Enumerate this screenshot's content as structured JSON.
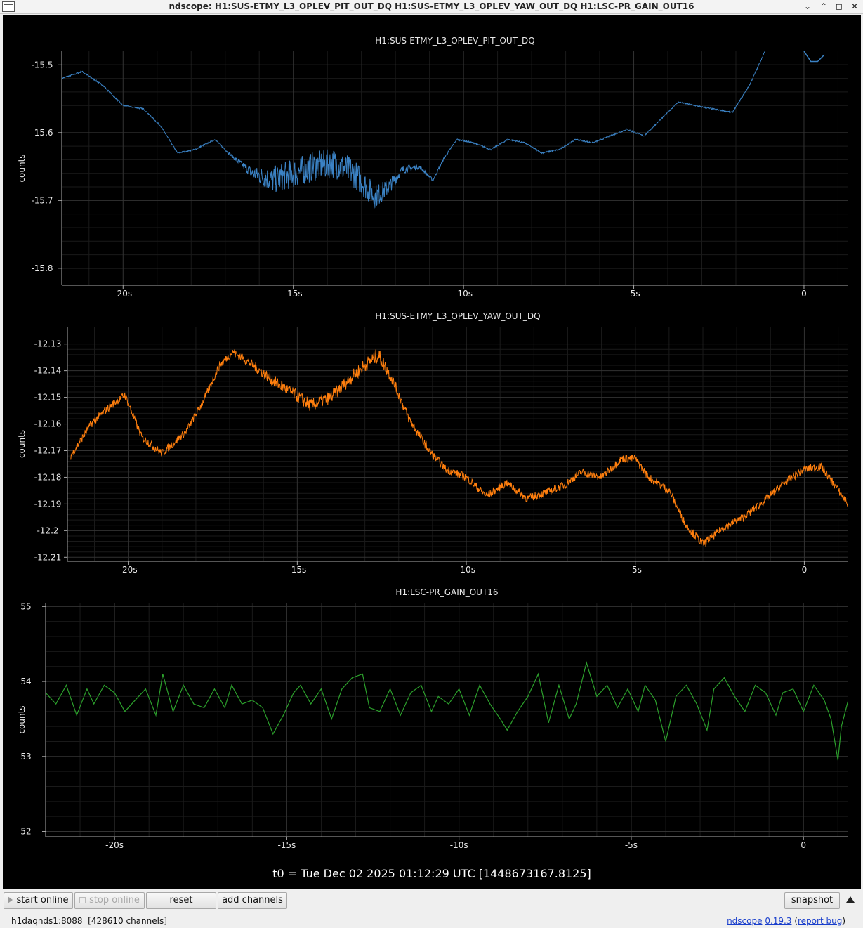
{
  "window": {
    "title": "ndscope: H1:SUS-ETMY_L3_OPLEV_PIT_OUT_DQ H1:SUS-ETMY_L3_OPLEV_YAW_OUT_DQ H1:LSC-PR_GAIN_OUT16",
    "controls": {
      "shade": "⌄",
      "maximize_up": "⌃",
      "restore": "◻",
      "close": "✕"
    }
  },
  "chart_data": [
    {
      "type": "line",
      "title": "H1:SUS-ETMY_L3_OPLEV_PIT_OUT_DQ",
      "ylabel": "counts",
      "color": "#3b82c4",
      "xlim": [
        -21.8,
        1.3
      ],
      "ylim": [
        -15.825,
        -15.48
      ],
      "yticks": [
        -15.5,
        -15.6,
        -15.7,
        -15.8
      ],
      "ytick_labels": [
        "-15.5",
        "-15.6",
        "-15.7",
        "-15.8"
      ],
      "xticks": [
        -20,
        -15,
        -10,
        -5,
        0
      ],
      "xtick_labels": [
        "-20s",
        "-15s",
        "-10s",
        "-5s",
        "0"
      ],
      "grid": true,
      "x": [
        -21.8,
        -21.2,
        -20.6,
        -20.0,
        -19.4,
        -18.9,
        -18.4,
        -17.9,
        -17.3,
        -16.8,
        -16.2,
        -15.6,
        -15.0,
        -14.4,
        -13.8,
        -13.2,
        -12.6,
        -12.2,
        -11.8,
        -11.3,
        -10.9,
        -10.6,
        -10.2,
        -9.7,
        -9.2,
        -8.7,
        -8.2,
        -7.7,
        -7.2,
        -6.7,
        -6.2,
        -5.7,
        -5.2,
        -4.7,
        -4.2,
        -3.7,
        -3.2,
        -2.7,
        -2.1,
        -1.6,
        -1.1
      ],
      "y": [
        -15.52,
        -15.51,
        -15.53,
        -15.56,
        -15.565,
        -15.59,
        -15.63,
        -15.625,
        -15.61,
        -15.635,
        -15.66,
        -15.67,
        -15.66,
        -15.65,
        -15.645,
        -15.66,
        -15.695,
        -15.68,
        -15.655,
        -15.65,
        -15.67,
        -15.64,
        -15.61,
        -15.615,
        -15.625,
        -15.61,
        -15.615,
        -15.63,
        -15.625,
        -15.61,
        -15.615,
        -15.605,
        -15.595,
        -15.605,
        -15.58,
        -15.555,
        -15.56,
        -15.565,
        -15.57,
        -15.53,
        -15.475
      ],
      "noise": [
        0.001,
        0.001,
        0.001,
        0.001,
        0.001,
        0.001,
        0.001,
        0.001,
        0.001,
        0.002,
        0.009,
        0.02,
        0.022,
        0.022,
        0.022,
        0.022,
        0.018,
        0.012,
        0.006,
        0.003,
        0.002,
        0.002,
        0.001,
        0.001,
        0.001,
        0.001,
        0.001,
        0.001,
        0.001,
        0.001,
        0.001,
        0.001,
        0.001,
        0.001,
        0.001,
        0.001,
        0.001,
        0.001,
        0.001,
        0.001,
        0.001
      ],
      "extra_segment": {
        "x": [
          0.0,
          0.2,
          0.4,
          0.6
        ],
        "y": [
          -15.48,
          -15.495,
          -15.495,
          -15.485
        ]
      }
    },
    {
      "type": "line",
      "title": "H1:SUS-ETMY_L3_OPLEV_YAW_OUT_DQ",
      "ylabel": "counts",
      "color": "#ff7f0e",
      "xlim": [
        -21.8,
        1.3
      ],
      "ylim": [
        -12.2115,
        -12.1235
      ],
      "yticks": [
        -12.13,
        -12.14,
        -12.15,
        -12.16,
        -12.17,
        -12.18,
        -12.19,
        -12.2,
        -12.21
      ],
      "ytick_labels": [
        "-12.13",
        "-12.14",
        "-12.15",
        "-12.16",
        "-12.17",
        "-12.18",
        "-12.19",
        "-12.2",
        "-12.21"
      ],
      "xticks": [
        -20,
        -15,
        -10,
        -5,
        0
      ],
      "xtick_labels": [
        "-20s",
        "-15s",
        "-10s",
        "-5s",
        "0"
      ],
      "grid": true,
      "x": [
        -21.7,
        -21.1,
        -20.5,
        -20.1,
        -19.6,
        -19.0,
        -18.3,
        -17.8,
        -17.3,
        -16.9,
        -16.3,
        -15.8,
        -15.2,
        -14.6,
        -14.0,
        -13.6,
        -13.1,
        -12.6,
        -12.2,
        -11.7,
        -11.1,
        -10.6,
        -10.0,
        -9.4,
        -8.8,
        -8.2,
        -7.7,
        -7.1,
        -6.6,
        -6.0,
        -5.4,
        -5.0,
        -4.6,
        -4.0,
        -3.5,
        -3.0,
        -2.4,
        -1.8,
        -1.2,
        -0.6,
        0.0,
        0.5,
        0.9,
        1.3
      ],
      "y": [
        -12.172,
        -12.16,
        -12.153,
        -12.149,
        -12.165,
        -12.171,
        -12.163,
        -12.152,
        -12.138,
        -12.133,
        -12.138,
        -12.143,
        -12.148,
        -12.153,
        -12.15,
        -12.145,
        -12.139,
        -12.134,
        -12.143,
        -12.158,
        -12.17,
        -12.177,
        -12.18,
        -12.187,
        -12.182,
        -12.188,
        -12.186,
        -12.183,
        -12.178,
        -12.18,
        -12.173,
        -12.173,
        -12.18,
        -12.185,
        -12.198,
        -12.205,
        -12.199,
        -12.195,
        -12.189,
        -12.182,
        -12.177,
        -12.176,
        -12.183,
        -12.19
      ],
      "noise": [
        0.0015,
        0.0015,
        0.0015,
        0.0015,
        0.0015,
        0.0015,
        0.0015,
        0.0015,
        0.0015,
        0.0015,
        0.0018,
        0.0022,
        0.0024,
        0.0025,
        0.0025,
        0.0025,
        0.0026,
        0.0028,
        0.0022,
        0.0018,
        0.0016,
        0.0015,
        0.0015,
        0.0015,
        0.0015,
        0.0015,
        0.0015,
        0.0015,
        0.0015,
        0.0015,
        0.0015,
        0.0015,
        0.0015,
        0.0015,
        0.0015,
        0.0015,
        0.0015,
        0.0015,
        0.0015,
        0.0015,
        0.0015,
        0.0015,
        0.0015,
        0.0015
      ]
    },
    {
      "type": "line",
      "title": "H1:LSC-PR_GAIN_OUT16",
      "ylabel": "counts",
      "color": "#2ca02c",
      "xlim": [
        -22.0,
        1.3
      ],
      "ylim": [
        51.93,
        55.05
      ],
      "yticks": [
        55,
        54,
        53,
        52
      ],
      "ytick_labels": [
        "55",
        "54",
        "53",
        "52"
      ],
      "xticks": [
        -20,
        -15,
        -10,
        -5,
        0
      ],
      "xtick_labels": [
        "-20s",
        "-15s",
        "-10s",
        "-5s",
        "0"
      ],
      "grid": true,
      "x": [
        -22.0,
        -21.7,
        -21.4,
        -21.1,
        -20.8,
        -20.6,
        -20.3,
        -20.0,
        -19.7,
        -19.4,
        -19.1,
        -18.8,
        -18.6,
        -18.3,
        -18.0,
        -17.7,
        -17.4,
        -17.1,
        -16.8,
        -16.6,
        -16.3,
        -16.0,
        -15.7,
        -15.4,
        -15.1,
        -14.8,
        -14.6,
        -14.3,
        -14.0,
        -13.7,
        -13.4,
        -13.1,
        -12.8,
        -12.6,
        -12.3,
        -12.0,
        -11.7,
        -11.4,
        -11.1,
        -10.8,
        -10.6,
        -10.3,
        -10.0,
        -9.7,
        -9.4,
        -9.1,
        -8.8,
        -8.6,
        -8.3,
        -8.0,
        -7.7,
        -7.4,
        -7.1,
        -6.8,
        -6.6,
        -6.3,
        -6.0,
        -5.7,
        -5.4,
        -5.1,
        -4.8,
        -4.6,
        -4.3,
        -4.0,
        -3.7,
        -3.4,
        -3.1,
        -2.8,
        -2.6,
        -2.3,
        -2.0,
        -1.7,
        -1.4,
        -1.1,
        -0.8,
        -0.6,
        -0.3,
        0.0,
        0.3,
        0.6,
        0.8,
        1.0,
        1.1,
        1.3
      ],
      "y": [
        53.85,
        53.7,
        53.95,
        53.55,
        53.9,
        53.7,
        53.95,
        53.85,
        53.6,
        53.75,
        53.9,
        53.55,
        54.1,
        53.6,
        53.95,
        53.7,
        53.65,
        53.9,
        53.65,
        53.95,
        53.7,
        53.75,
        53.65,
        53.3,
        53.55,
        53.85,
        53.95,
        53.7,
        53.9,
        53.5,
        53.9,
        54.05,
        54.1,
        53.65,
        53.6,
        53.9,
        53.55,
        53.85,
        53.95,
        53.6,
        53.8,
        53.7,
        53.9,
        53.55,
        53.95,
        53.7,
        53.5,
        53.35,
        53.6,
        53.8,
        54.1,
        53.45,
        53.95,
        53.5,
        53.7,
        54.25,
        53.8,
        53.95,
        53.65,
        53.9,
        53.6,
        53.95,
        53.75,
        53.2,
        53.8,
        53.95,
        53.7,
        53.35,
        53.9,
        54.05,
        53.8,
        53.6,
        53.95,
        53.85,
        53.55,
        53.85,
        53.9,
        53.6,
        53.95,
        53.75,
        53.5,
        52.95,
        53.4,
        53.75
      ]
    }
  ],
  "footer": {
    "t0": "t0 = Tue Dec 02 2025 01:12:29 UTC [1448673167.8125]"
  },
  "toolbar": {
    "start_online": "start online",
    "stop_online": "stop online",
    "reset": "reset",
    "add_channels": "add channels",
    "snapshot": "snapshot"
  },
  "status": {
    "server": "h1daqnds1:8088",
    "channels": "[428610 channels]",
    "app": "ndscope",
    "version": "0.19.3",
    "paren_open": "(",
    "report": "report bug",
    "paren_close": ")"
  }
}
